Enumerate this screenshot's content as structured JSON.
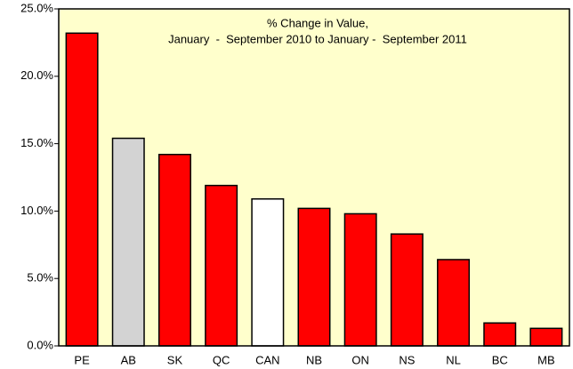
{
  "chart_data": {
    "type": "bar",
    "title": [
      "% Change in Value,",
      "January  -  September 2010 to January -  September 2011"
    ],
    "categories": [
      "PE",
      "AB",
      "SK",
      "QC",
      "CAN",
      "NB",
      "ON",
      "NS",
      "NL",
      "BC",
      "MB"
    ],
    "values": [
      23.2,
      15.4,
      14.2,
      11.9,
      10.9,
      10.2,
      9.8,
      8.3,
      6.4,
      1.7,
      1.3
    ],
    "colors": [
      "#ff0000",
      "#d3d3d3",
      "#ff0000",
      "#ff0000",
      "#ffffff",
      "#ff0000",
      "#ff0000",
      "#ff0000",
      "#ff0000",
      "#ff0000",
      "#ff0000"
    ],
    "plot_background": "#ffffcc",
    "ylim": [
      0,
      25
    ],
    "yticks": [
      {
        "value": 0,
        "label": "0.0%"
      },
      {
        "value": 5,
        "label": "5.0%"
      },
      {
        "value": 10,
        "label": "10.0%"
      },
      {
        "value": 15,
        "label": "15.0%"
      },
      {
        "value": 20,
        "label": "20.0%"
      },
      {
        "value": 25,
        "label": "25.0%"
      }
    ],
    "grid": false
  }
}
